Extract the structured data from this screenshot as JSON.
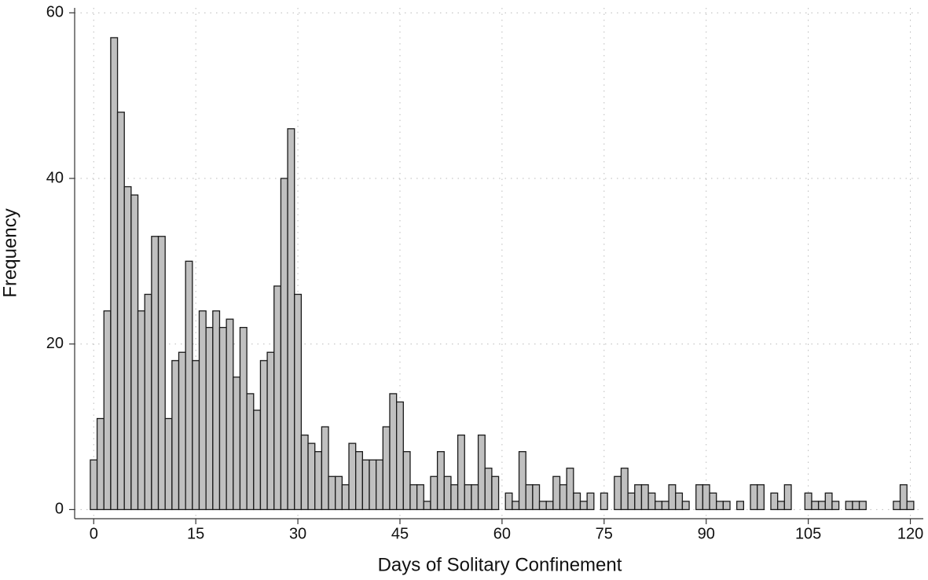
{
  "chart_data": {
    "type": "histogram",
    "xlabel": "Days of Solitary Confinement",
    "ylabel": "Frequency",
    "bins": [
      -0.5,
      0.5,
      1.5,
      2.5,
      3.5,
      4.5,
      5.5,
      6.5,
      7.5,
      8.5,
      9.5,
      10.5,
      11.5,
      12.5,
      13.5,
      14.5,
      15.5,
      16.5,
      17.5,
      18.5,
      19.5,
      20.5,
      21.5,
      22.5,
      23.5,
      24.5,
      25.5,
      26.5,
      27.5,
      28.5,
      29.5,
      30.5,
      31.5,
      32.5,
      33.5,
      34.5,
      35.5,
      36.5,
      37.5,
      38.5,
      39.5,
      40.5,
      41.5,
      42.5,
      43.5,
      44.5,
      45.5,
      46.5,
      47.5,
      48.5,
      49.5,
      50.5,
      51.5,
      52.5,
      53.5,
      54.5,
      55.5,
      56.5,
      57.5,
      58.5,
      59.5,
      60.5,
      61.5,
      62.5,
      63.5,
      64.5,
      65.5,
      66.5,
      67.5,
      68.5,
      69.5,
      70.5,
      71.5,
      72.5,
      73.5,
      74.5,
      75.5,
      76.5,
      77.5,
      78.5,
      79.5,
      80.5,
      81.5,
      82.5,
      83.5,
      84.5,
      85.5,
      86.5,
      87.5,
      88.5,
      89.5,
      90.5,
      91.5,
      92.5,
      93.5,
      94.5,
      95.5,
      96.5,
      97.5,
      98.5,
      99.5,
      100.5,
      101.5,
      102.5,
      103.5,
      104.5,
      105.5,
      106.5,
      107.5,
      108.5,
      109.5,
      110.5,
      111.5,
      112.5,
      113.5,
      114.5,
      115.5,
      116.5,
      117.5,
      118.5,
      119.5,
      120.5
    ],
    "values": [
      6,
      11,
      24,
      57,
      48,
      39,
      38,
      24,
      26,
      33,
      33,
      11,
      18,
      19,
      30,
      18,
      24,
      22,
      24,
      22,
      23,
      16,
      22,
      14,
      12,
      18,
      19,
      27,
      40,
      46,
      26,
      9,
      8,
      7,
      10,
      4,
      4,
      3,
      8,
      7,
      6,
      6,
      6,
      10,
      14,
      13,
      7,
      3,
      3,
      1,
      4,
      7,
      4,
      3,
      9,
      3,
      3,
      9,
      5,
      4,
      0,
      2,
      1,
      7,
      3,
      3,
      1,
      1,
      4,
      3,
      5,
      2,
      1,
      2,
      0,
      2,
      0,
      4,
      5,
      2,
      3,
      3,
      2,
      1,
      1,
      3,
      2,
      1,
      0,
      3,
      3,
      2,
      1,
      1,
      0,
      1,
      0,
      3,
      3,
      0,
      2,
      1,
      3,
      0,
      0,
      2,
      1,
      1,
      2,
      1,
      0,
      1,
      1,
      1,
      0,
      0,
      0,
      0,
      1,
      3,
      1
    ],
    "color": "#c0c0c0",
    "edgecolor": "#1a1a1a",
    "xlim": [
      -2.8,
      121.9
    ],
    "ylim": [
      -1.1,
      60.6
    ],
    "xticks": [
      0,
      15,
      30,
      45,
      60,
      75,
      90,
      105,
      120
    ],
    "yticks": [
      0,
      20,
      40,
      60
    ],
    "grid": true
  }
}
